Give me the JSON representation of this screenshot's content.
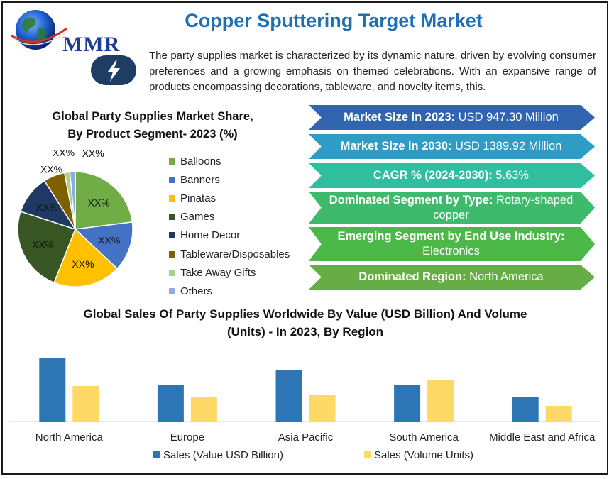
{
  "header": {
    "logo_text": "MMR",
    "title": "Copper Sputtering Target Market",
    "intro": "The party supplies market is characterized by its dynamic nature, driven by evolving consumer preferences and a growing emphasis on themed celebrations. With an expansive range of products encompassing decorations, tableware, and novelty items, this."
  },
  "icons": {
    "logo": "globe-logo-icon",
    "badge": "lightning-bolt-icon"
  },
  "highlights": [
    {
      "label": "Market Size in 2023:",
      "value": " USD 947.30 Million",
      "color": "#3165b0"
    },
    {
      "label": "Market Size in 2030:",
      "value": " USD 1389.92 Million",
      "color": "#2e9cc4"
    },
    {
      "label": "CAGR % (2024-2030):",
      "value": " 5.63%",
      "color": "#2fbfa0"
    },
    {
      "label": "Dominated Segment by Type:",
      "value": " Rotary-shaped copper",
      "color": "#3dba6b"
    },
    {
      "label": "Emerging Segment by End Use Industry:",
      "value": " Electronics",
      "color": "#4bb848"
    },
    {
      "label": "Dominated Region:",
      "value": " North America",
      "color": "#67ad46"
    }
  ],
  "chart_data": [
    {
      "type": "pie",
      "title_line1": "Global Party Supplies Market Share,",
      "title_line2": "By Product Segment- 2023 (%)",
      "slices": [
        {
          "name": "Balloons",
          "value": 23,
          "label": "XX%",
          "color": "#70ad47"
        },
        {
          "name": "Banners",
          "value": 14,
          "label": "XX%",
          "color": "#4472c4"
        },
        {
          "name": "Pinatas",
          "value": 19,
          "label": "XX%",
          "color": "#ffc000"
        },
        {
          "name": "Games",
          "value": 24,
          "label": "XX%",
          "color": "#375623"
        },
        {
          "name": "Home Decor",
          "value": 11,
          "label": "XX%",
          "color": "#203864"
        },
        {
          "name": "Tableware/Disposables",
          "value": 6,
          "label": "XX%",
          "color": "#7f6000"
        },
        {
          "name": "Take Away Gifts",
          "value": 1.5,
          "label": "XX%",
          "color": "#a9d18e"
        },
        {
          "name": "Others",
          "value": 1.5,
          "label": "XX%",
          "color": "#8faadc"
        }
      ]
    },
    {
      "type": "bar",
      "title_line1": "Global Sales Of Party Supplies Worldwide By Value (USD Billion) And Volume",
      "title_line2": "(Units) - In 2023, By Region",
      "categories": [
        "North America",
        "Europe",
        "Asia Pacific",
        "South America",
        "Middle East and Africa"
      ],
      "series": [
        {
          "name": "Sales (Value USD Billion)",
          "color": "#2e75b6",
          "values": [
            90,
            52,
            73,
            52,
            35
          ]
        },
        {
          "name": "Sales (Volume Units)",
          "color": "#ffd966",
          "values": [
            50,
            35,
            37,
            59,
            22
          ]
        }
      ],
      "ylim": [
        0,
        100
      ],
      "legend": "bottom",
      "grid": false
    }
  ]
}
